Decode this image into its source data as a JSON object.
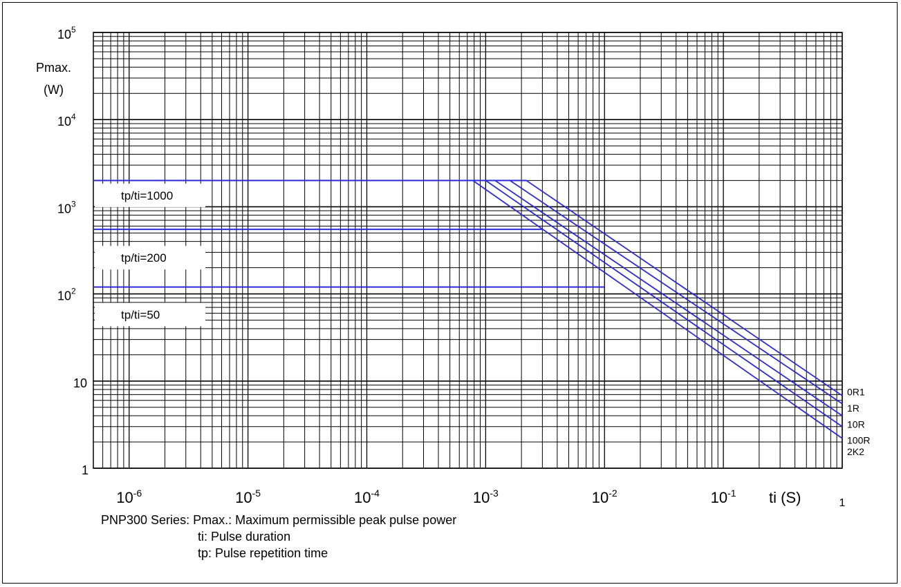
{
  "chart_data": {
    "type": "line",
    "title": "",
    "x_scale": "log",
    "y_scale": "log",
    "xlim": [
      5e-07,
      1
    ],
    "ylim": [
      1,
      100000
    ],
    "grid": true,
    "ylabel_line1": "Pmax.",
    "ylabel_line2": "(W)",
    "xlabel": "ti (S)",
    "x_ticks": [
      {
        "value": 1e-06,
        "base": "10",
        "exp": "-6"
      },
      {
        "value": 1e-05,
        "base": "10",
        "exp": "-5"
      },
      {
        "value": 0.0001,
        "base": "10",
        "exp": "-4"
      },
      {
        "value": 0.001,
        "base": "10",
        "exp": "-3"
      },
      {
        "value": 0.01,
        "base": "10",
        "exp": "-2"
      },
      {
        "value": 0.1,
        "base": "10",
        "exp": "-1"
      },
      {
        "value": 1,
        "base": "1",
        "exp": ""
      }
    ],
    "y_ticks": [
      {
        "value": 1,
        "base": "1",
        "exp": ""
      },
      {
        "value": 10,
        "base": "10",
        "exp": ""
      },
      {
        "value": 100,
        "base": "10",
        "exp": "2"
      },
      {
        "value": 1000,
        "base": "10",
        "exp": "3"
      },
      {
        "value": 10000,
        "base": "10",
        "exp": "4"
      },
      {
        "value": 100000,
        "base": "10",
        "exp": "5"
      }
    ],
    "duty_lines": [
      {
        "label": "tp/ti=1000",
        "y": 2000,
        "x_end": 0.0022,
        "label_y": 1350
      },
      {
        "label": "tp/ti=200",
        "y": 550,
        "x_end": 0.003,
        "label_y": 260
      },
      {
        "label": "tp/ti=50",
        "y": 120,
        "x_end": 0.01,
        "label_y": 58
      }
    ],
    "series": [
      {
        "name": "0R1",
        "points": [
          [
            0.0022,
            2000
          ],
          [
            1,
            6.8
          ]
        ]
      },
      {
        "name": "1R",
        "points": [
          [
            0.0016,
            2000
          ],
          [
            1,
            5.5
          ]
        ]
      },
      {
        "name": "10R",
        "points": [
          [
            0.0012,
            2000
          ],
          [
            1,
            4.0
          ]
        ]
      },
      {
        "name": "100R",
        "points": [
          [
            0.001,
            2000
          ],
          [
            1,
            3.0
          ]
        ]
      },
      {
        "name": "2K2",
        "points": [
          [
            0.00078,
            2000
          ],
          [
            1,
            2.2
          ]
        ]
      }
    ],
    "series_label_y": [
      7.5,
      4.9,
      3.2,
      2.1,
      1.55
    ]
  },
  "caption": {
    "line1": "PNP300 Series: Pmax.: Maximum permissible peak pulse power",
    "line2": "ti: Pulse duration",
    "line3": "tp: Pulse repetition time"
  }
}
